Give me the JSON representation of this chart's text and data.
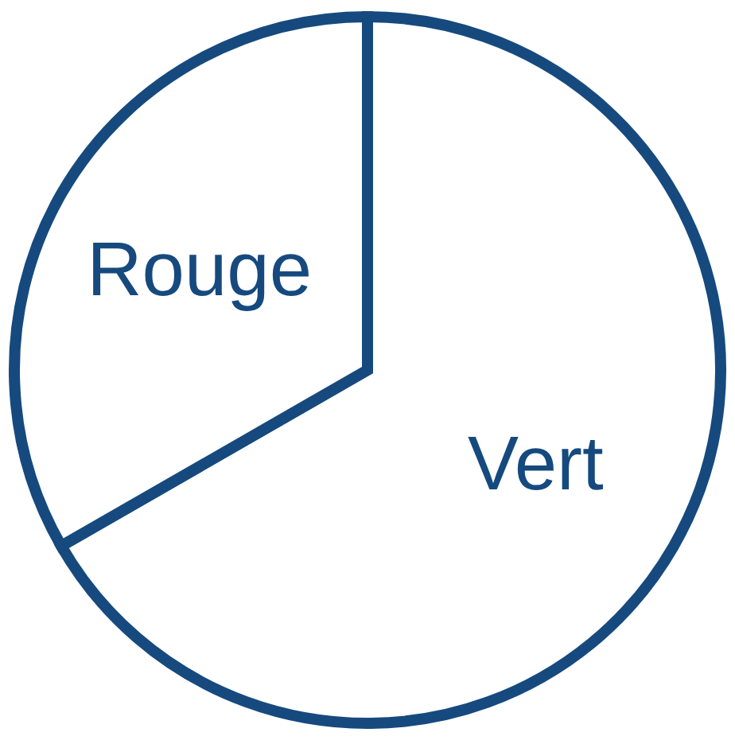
{
  "chart_data": {
    "type": "pie",
    "categories": [
      "Vert",
      "Rouge"
    ],
    "values": [
      66.7,
      33.3
    ],
    "colors": [
      "#ffffff",
      "#ffffff"
    ],
    "legend": false
  }
}
